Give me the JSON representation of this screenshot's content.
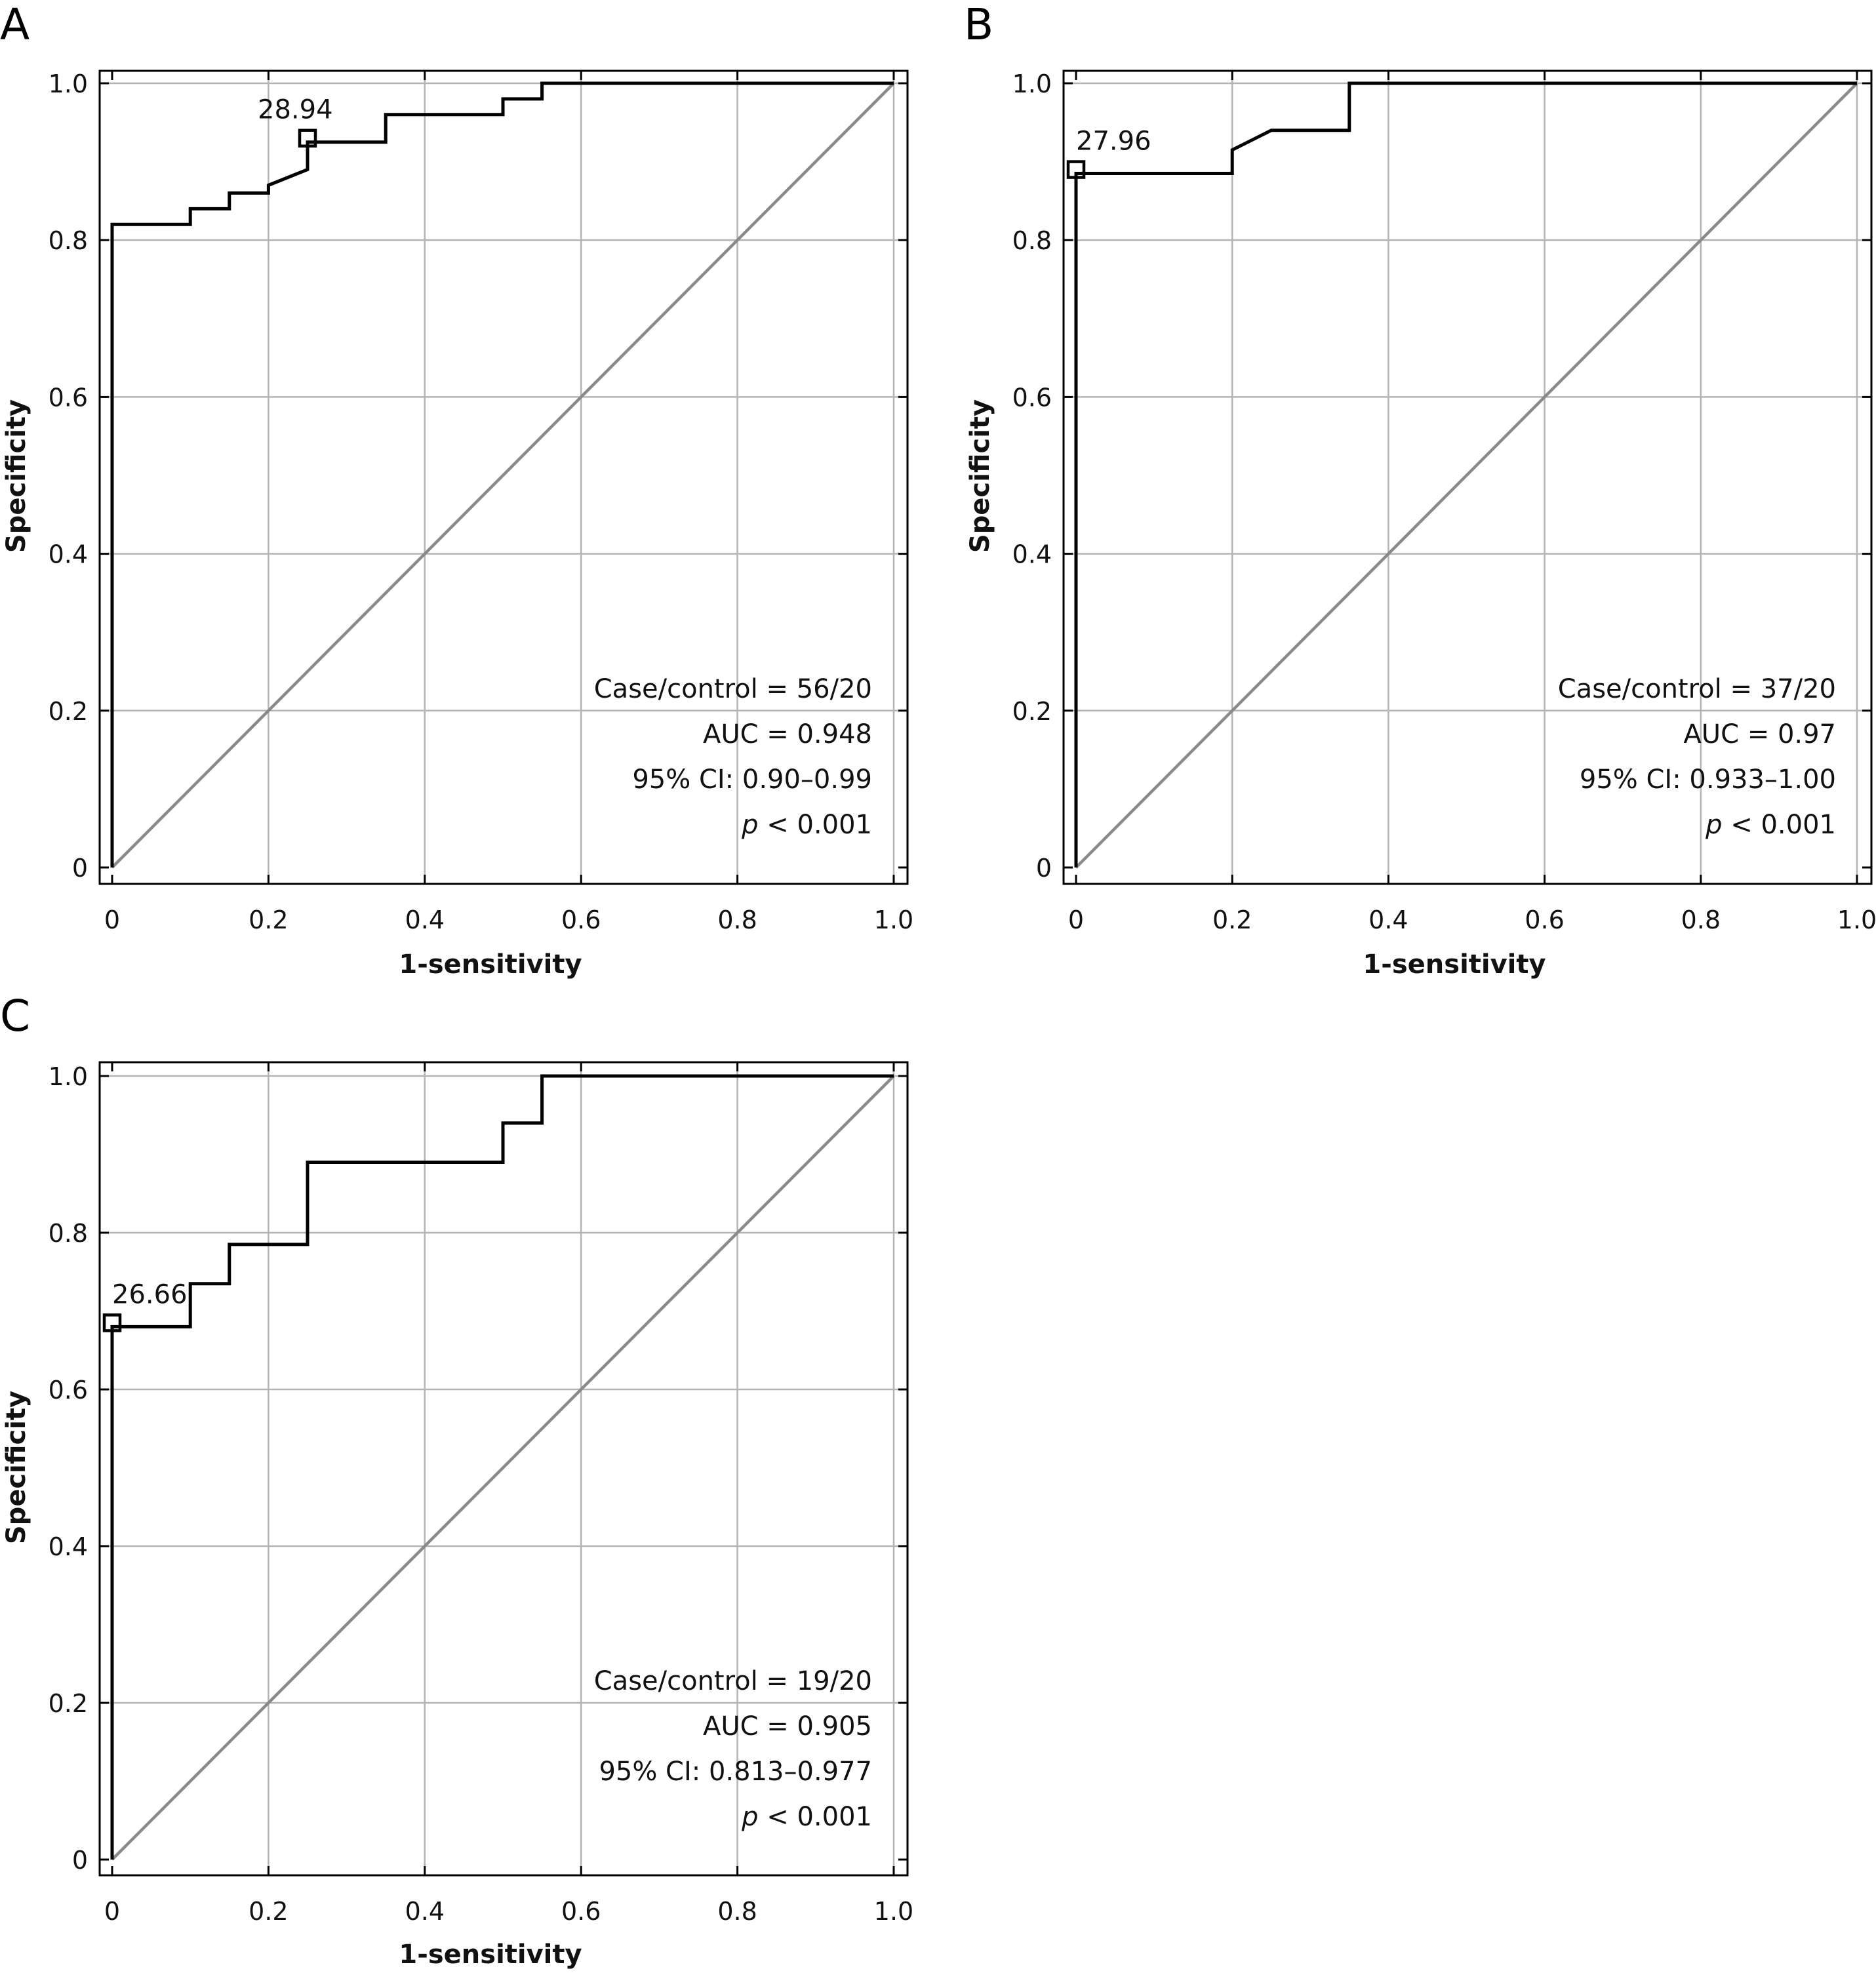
{
  "chart_data": [
    {
      "type": "line",
      "panel": "A",
      "xlabel": "1-sensitivity",
      "ylabel": "Specificity",
      "xlim": [
        0,
        1
      ],
      "ylim": [
        0,
        1
      ],
      "x_ticks": [
        "0",
        "0.2",
        "0.4",
        "0.6",
        "0.8",
        "1.0"
      ],
      "y_ticks": [
        "0",
        "0.2",
        "0.4",
        "0.6",
        "0.8",
        "1.0"
      ],
      "grid": true,
      "series": [
        {
          "x": [
            0,
            0,
            0.1,
            0.1,
            0.15,
            0.15,
            0.2,
            0.2,
            0.25,
            0.25,
            0.35,
            0.35,
            0.5,
            0.5,
            0.55,
            0.55,
            1.0
          ],
          "y": [
            0,
            0.82,
            0.82,
            0.84,
            0.84,
            0.86,
            0.86,
            0.87,
            0.89,
            0.925,
            0.925,
            0.96,
            0.96,
            0.98,
            0.98,
            1.0,
            1.0
          ]
        }
      ],
      "reference_line": {
        "x": [
          0,
          1
        ],
        "y": [
          0,
          1
        ]
      },
      "cutoff": {
        "label": "28.94",
        "x": 0.25,
        "y": 0.93
      },
      "annotations": [
        "Case/control = 56/20",
        "AUC = 0.948",
        "95% CI: 0.90–0.99"
      ],
      "p_symbol": "p",
      "p_value": "< 0.001"
    },
    {
      "type": "line",
      "panel": "B",
      "xlabel": "1-sensitivity",
      "ylabel": "Specificity",
      "xlim": [
        0,
        1
      ],
      "ylim": [
        0,
        1
      ],
      "x_ticks": [
        "0",
        "0.2",
        "0.4",
        "0.6",
        "0.8",
        "1.0"
      ],
      "y_ticks": [
        "0",
        "0.2",
        "0.4",
        "0.6",
        "0.8",
        "1.0"
      ],
      "grid": true,
      "series": [
        {
          "x": [
            0,
            0,
            0.2,
            0.2,
            0.25,
            0.35,
            0.35,
            1.0
          ],
          "y": [
            0,
            0.885,
            0.885,
            0.915,
            0.94,
            0.94,
            1.0,
            1.0
          ]
        }
      ],
      "reference_line": {
        "x": [
          0,
          1
        ],
        "y": [
          0,
          1
        ]
      },
      "cutoff": {
        "label": "27.96",
        "x": 0.0,
        "y": 0.89
      },
      "annotations": [
        "Case/control = 37/20",
        "AUC = 0.97",
        "95% CI: 0.933–1.00"
      ],
      "p_symbol": "p",
      "p_value": "< 0.001"
    },
    {
      "type": "line",
      "panel": "C",
      "xlabel": "1-sensitivity",
      "ylabel": "Specificity",
      "xlim": [
        0,
        1
      ],
      "ylim": [
        0,
        1
      ],
      "x_ticks": [
        "0",
        "0.2",
        "0.4",
        "0.6",
        "0.8",
        "1.0"
      ],
      "y_ticks": [
        "0",
        "0.2",
        "0.4",
        "0.6",
        "0.8",
        "1.0"
      ],
      "grid": true,
      "series": [
        {
          "x": [
            0,
            0,
            0.1,
            0.1,
            0.15,
            0.15,
            0.25,
            0.25,
            0.5,
            0.5,
            0.55,
            0.55,
            1.0
          ],
          "y": [
            0,
            0.68,
            0.68,
            0.735,
            0.735,
            0.785,
            0.785,
            0.89,
            0.89,
            0.94,
            0.94,
            1.0,
            1.0
          ]
        }
      ],
      "reference_line": {
        "x": [
          0,
          1
        ],
        "y": [
          0,
          1
        ]
      },
      "cutoff": {
        "label": "26.66",
        "x": 0.0,
        "y": 0.685
      },
      "annotations": [
        "Case/control = 19/20",
        "AUC = 0.905",
        "95% CI: 0.813–0.977"
      ],
      "p_symbol": "p",
      "p_value": "< 0.001"
    }
  ]
}
